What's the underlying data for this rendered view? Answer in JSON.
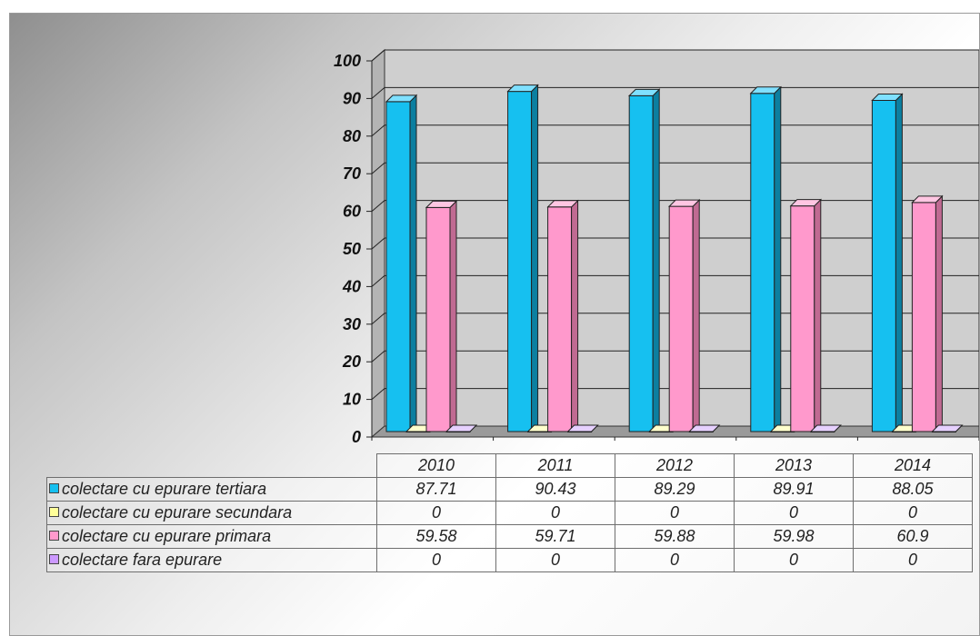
{
  "chart_data": {
    "type": "bar",
    "categories": [
      "2010",
      "2011",
      "2012",
      "2013",
      "2014"
    ],
    "ylim": [
      0,
      100
    ],
    "yticks": [
      "0",
      "10",
      "20",
      "30",
      "40",
      "50",
      "60",
      "70",
      "80",
      "90",
      "100"
    ],
    "grid": true,
    "legend_placement": "data-table-below",
    "series": [
      {
        "name": "colectare cu epurare tertiara",
        "values": [
          87.71,
          90.43,
          89.29,
          89.91,
          88.05
        ],
        "value_labels": [
          "87.71",
          "90.43",
          "89.29",
          "89.91",
          "88.05"
        ],
        "color": "#16c0f0",
        "side": "#0c7fa0",
        "top": "#7fe0ff"
      },
      {
        "name": "colectare cu epurare secundara",
        "values": [
          0,
          0,
          0,
          0,
          0
        ],
        "value_labels": [
          "0",
          "0",
          "0",
          "0",
          "0"
        ],
        "color": "#ffff99",
        "side": "#b8b86a",
        "top": "#ffffcc"
      },
      {
        "name": "colectare cu epurare primara",
        "values": [
          59.58,
          59.71,
          59.88,
          59.98,
          60.9
        ],
        "value_labels": [
          "59.58",
          "59.71",
          "59.88",
          "59.98",
          "60.9"
        ],
        "color": "#ff99cc",
        "side": "#c06a92",
        "top": "#ffc6e2"
      },
      {
        "name": "colectare fara epurare",
        "values": [
          0,
          0,
          0,
          0,
          0
        ],
        "value_labels": [
          "0",
          "0",
          "0",
          "0",
          "0"
        ],
        "color": "#cc99ff",
        "side": "#8e6ab8",
        "top": "#e6d0ff"
      }
    ]
  }
}
